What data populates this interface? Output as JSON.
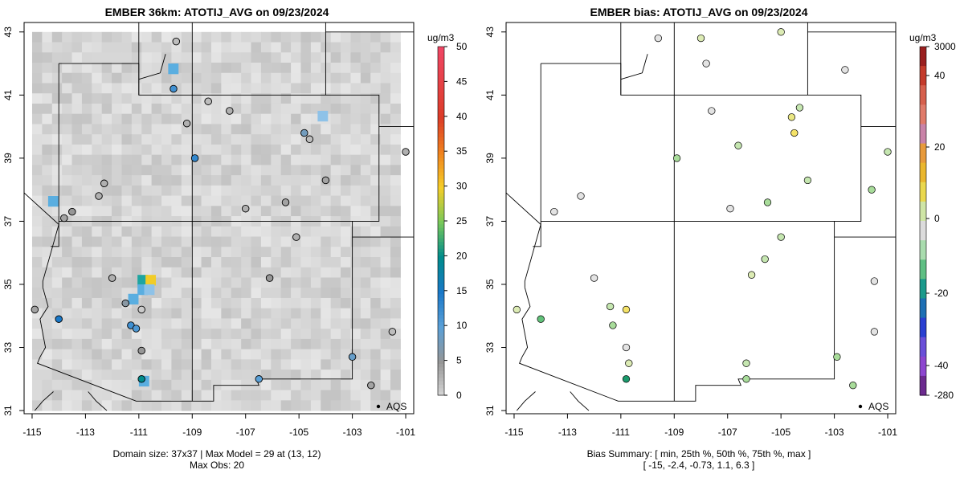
{
  "left_panel": {
    "title": "EMBER 36km: ATOTIJ_AVG on 09/23/2024",
    "unit_label": "ug/m3",
    "colorbar_ticks": [
      "0",
      "5",
      "10",
      "15",
      "20",
      "25",
      "30",
      "35",
      "40",
      "45",
      "50"
    ],
    "legend_label": "AQS",
    "caption_line1": "Domain size: 37x37 | Max Model = 29 at (13, 12)",
    "caption_line2": "Max Obs: 20"
  },
  "right_panel": {
    "title": "EMBER bias: ATOTIJ_AVG on 09/23/2024",
    "unit_label": "ug/m3",
    "colorbar_ticks": [
      "3000",
      "40",
      "20",
      "0",
      "-20",
      "-40",
      "-280"
    ],
    "legend_label": "AQS",
    "caption_line1": "Bias Summary: [ min, 25th %, 50th %, 75th %, max ]",
    "caption_line2": "[ -15,   -2.4,   -0.73,   1.1,   6.3 ]"
  },
  "x_ticks": [
    "-115",
    "-113",
    "-111",
    "-109",
    "-107",
    "-105",
    "-103",
    "-101"
  ],
  "y_ticks": [
    "31",
    "33",
    "35",
    "37",
    "39",
    "41",
    "43"
  ],
  "chart_data": [
    {
      "type": "heatmap",
      "title": "EMBER 36km: ATOTIJ_AVG on 09/23/2024",
      "xlim": [
        -115.3,
        -100.7
      ],
      "ylim": [
        30.9,
        43.3
      ],
      "legend": "bottom-right",
      "colorscale_range": [
        0,
        50
      ],
      "colors": {
        "background": "#d7d7d7",
        "high": "#f1cc27",
        "mid": "#1ea5a0"
      },
      "max_model_cell": {
        "value": 29,
        "i": 13,
        "j": 12
      },
      "max_obs": 20,
      "stations": [
        {
          "lon": -114.9,
          "lat": 34.2,
          "value": 4
        },
        {
          "lon": -114.0,
          "lat": 33.9,
          "value": 15
        },
        {
          "lon": -113.5,
          "lat": 37.3,
          "value": 5
        },
        {
          "lon": -113.8,
          "lat": 37.1,
          "value": 4
        },
        {
          "lon": -112.5,
          "lat": 37.8,
          "value": 3
        },
        {
          "lon": -112.3,
          "lat": 38.2,
          "value": 3
        },
        {
          "lon": -112.0,
          "lat": 35.2,
          "value": 3
        },
        {
          "lon": -111.5,
          "lat": 34.4,
          "value": 6
        },
        {
          "lon": -111.3,
          "lat": 33.7,
          "value": 12
        },
        {
          "lon": -111.1,
          "lat": 33.6,
          "value": 11
        },
        {
          "lon": -110.9,
          "lat": 34.2,
          "value": 1
        },
        {
          "lon": -110.9,
          "lat": 32.9,
          "value": 5
        },
        {
          "lon": -110.9,
          "lat": 32.0,
          "value": 20
        },
        {
          "lon": -109.6,
          "lat": 42.7,
          "value": 2
        },
        {
          "lon": -109.7,
          "lat": 41.2,
          "value": 12
        },
        {
          "lon": -109.2,
          "lat": 40.1,
          "value": 3
        },
        {
          "lon": -108.9,
          "lat": 39.0,
          "value": 13
        },
        {
          "lon": -108.4,
          "lat": 40.8,
          "value": 2
        },
        {
          "lon": -107.6,
          "lat": 40.5,
          "value": 3
        },
        {
          "lon": -107.0,
          "lat": 37.4,
          "value": 3
        },
        {
          "lon": -106.1,
          "lat": 35.2,
          "value": 5
        },
        {
          "lon": -106.5,
          "lat": 32.0,
          "value": 10
        },
        {
          "lon": -105.5,
          "lat": 37.6,
          "value": 4
        },
        {
          "lon": -105.1,
          "lat": 36.5,
          "value": 3
        },
        {
          "lon": -104.8,
          "lat": 39.8,
          "value": 8
        },
        {
          "lon": -104.6,
          "lat": 39.6,
          "value": 2
        },
        {
          "lon": -104.0,
          "lat": 38.3,
          "value": 4
        },
        {
          "lon": -103.0,
          "lat": 32.7,
          "value": 9
        },
        {
          "lon": -102.3,
          "lat": 31.8,
          "value": 4
        },
        {
          "lon": -101.5,
          "lat": 33.5,
          "value": 2
        },
        {
          "lon": -101.0,
          "lat": 39.2,
          "value": 3
        }
      ]
    },
    {
      "type": "scatter",
      "title": "EMBER bias: ATOTIJ_AVG on 09/23/2024",
      "xlim": [
        -115.3,
        -100.7
      ],
      "ylim": [
        30.9,
        43.3
      ],
      "legend": "bottom-right",
      "colorbar_ticks": [
        3000,
        40,
        20,
        0,
        -20,
        -40,
        -280
      ],
      "bias_summary": {
        "min": -15,
        "p25": -2.4,
        "p50": -0.73,
        "p75": 1.1,
        "max": 6.3
      },
      "stations": [
        {
          "lon": -114.9,
          "lat": 34.2,
          "bias": 1
        },
        {
          "lon": -114.0,
          "lat": 33.9,
          "bias": -6
        },
        {
          "lon": -113.5,
          "lat": 37.3,
          "bias": 0
        },
        {
          "lon": -112.5,
          "lat": 37.8,
          "bias": 0
        },
        {
          "lon": -112.0,
          "lat": 35.2,
          "bias": 0
        },
        {
          "lon": -111.4,
          "lat": 34.3,
          "bias": -1
        },
        {
          "lon": -111.3,
          "lat": 33.7,
          "bias": -4
        },
        {
          "lon": -110.8,
          "lat": 34.2,
          "bias": 6
        },
        {
          "lon": -110.8,
          "lat": 33.0,
          "bias": 0
        },
        {
          "lon": -110.7,
          "lat": 32.5,
          "bias": 1
        },
        {
          "lon": -110.8,
          "lat": 32.0,
          "bias": -15
        },
        {
          "lon": -109.6,
          "lat": 42.8,
          "bias": 0
        },
        {
          "lon": -108.0,
          "lat": 42.8,
          "bias": 2
        },
        {
          "lon": -107.8,
          "lat": 42.0,
          "bias": 0
        },
        {
          "lon": -108.9,
          "lat": 39.0,
          "bias": -3
        },
        {
          "lon": -107.6,
          "lat": 40.5,
          "bias": 0
        },
        {
          "lon": -106.6,
          "lat": 39.4,
          "bias": -2
        },
        {
          "lon": -106.9,
          "lat": 37.4,
          "bias": 0
        },
        {
          "lon": -105.5,
          "lat": 37.6,
          "bias": -3
        },
        {
          "lon": -105.0,
          "lat": 36.5,
          "bias": -2
        },
        {
          "lon": -105.6,
          "lat": 35.8,
          "bias": -1
        },
        {
          "lon": -106.1,
          "lat": 35.3,
          "bias": 1
        },
        {
          "lon": -106.3,
          "lat": 32.5,
          "bias": -2
        },
        {
          "lon": -106.3,
          "lat": 32.0,
          "bias": -4
        },
        {
          "lon": -105.0,
          "lat": 43.0,
          "bias": 2
        },
        {
          "lon": -104.6,
          "lat": 40.3,
          "bias": 5
        },
        {
          "lon": -104.5,
          "lat": 39.8,
          "bias": 6
        },
        {
          "lon": -104.3,
          "lat": 40.6,
          "bias": -1
        },
        {
          "lon": -104.0,
          "lat": 38.3,
          "bias": -2
        },
        {
          "lon": -102.9,
          "lat": 32.7,
          "bias": -3
        },
        {
          "lon": -102.3,
          "lat": 31.8,
          "bias": -3
        },
        {
          "lon": -101.5,
          "lat": 35.1,
          "bias": 0
        },
        {
          "lon": -101.5,
          "lat": 33.5,
          "bias": 0
        },
        {
          "lon": -101.0,
          "lat": 39.2,
          "bias": -2
        },
        {
          "lon": -101.6,
          "lat": 38.0,
          "bias": -3
        },
        {
          "lon": -102.6,
          "lat": 41.8,
          "bias": 0
        }
      ]
    }
  ]
}
